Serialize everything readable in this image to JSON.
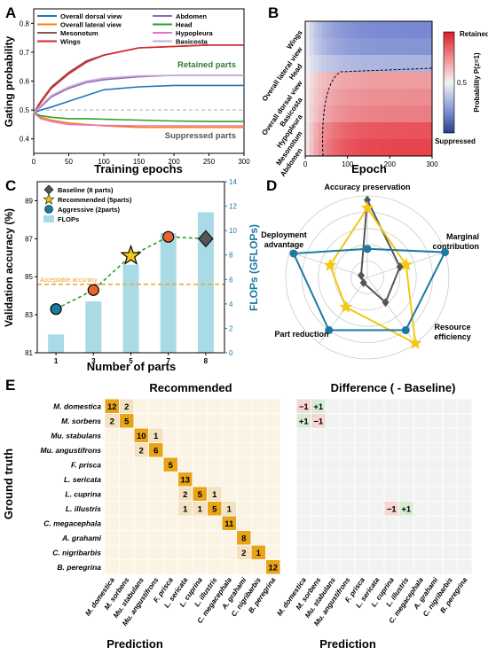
{
  "colors": {
    "overall_dorsal": "#1f77b4",
    "overall_lateral": "#ff7f0e",
    "mesonotum": "#8c564b",
    "wings": "#d62728",
    "abdomen": "#9467bd",
    "head": "#2ca02c",
    "hypopleura": "#e377c2",
    "basicosta": "#c5b0d5",
    "retained_text": "#2e7d32",
    "suppressed_text": "#555555",
    "baseline": "#555555",
    "recommended": "#f2c811",
    "aggressive": "#1a7aa0",
    "flops": "#a8dbe6",
    "trend": "#2ca02c",
    "threshold": "#f0a030",
    "flops_axis": "#1a7aa0",
    "cm_fill": "#fbf3e4",
    "cm_diag": "#e8a317",
    "cm_pos": "#d8ecd4",
    "cm_neg": "#f6d5d5",
    "diff_fill": "#f2f2f2"
  },
  "panel_labels": {
    "a": "A",
    "b": "B",
    "c": "C",
    "d": "D",
    "e": "E"
  },
  "chart_data": [
    {
      "panel": "A",
      "type": "line",
      "xlabel": "Training epochs",
      "ylabel": "Gating probability",
      "xlim": [
        0,
        300
      ],
      "ylim": [
        0.35,
        0.85
      ],
      "xticks": [
        0,
        50,
        100,
        150,
        200,
        250,
        300
      ],
      "yticks": [
        0.4,
        0.5,
        0.6,
        0.7,
        0.8
      ],
      "reference_line": 0.5,
      "annotations": {
        "retained": "Retained parts",
        "suppressed": "Suppressed parts"
      },
      "legend_position": "top",
      "series": [
        {
          "name": "Overall dorsal view",
          "color_key": "overall_dorsal",
          "x": [
            0,
            10,
            25,
            50,
            75,
            100,
            150,
            200,
            250,
            300
          ],
          "values": [
            0.49,
            0.5,
            0.51,
            0.53,
            0.55,
            0.57,
            0.58,
            0.585,
            0.585,
            0.585
          ]
        },
        {
          "name": "Overall lateral view",
          "color_key": "overall_lateral",
          "x": [
            0,
            10,
            25,
            50,
            75,
            100,
            150,
            200,
            250,
            300
          ],
          "values": [
            0.49,
            0.475,
            0.465,
            0.455,
            0.45,
            0.445,
            0.44,
            0.44,
            0.44,
            0.44
          ]
        },
        {
          "name": "Mesonotum",
          "color_key": "mesonotum",
          "x": [
            0,
            10,
            25,
            50,
            75,
            100,
            150,
            200,
            250,
            300
          ],
          "values": [
            0.49,
            0.53,
            0.58,
            0.63,
            0.67,
            0.69,
            0.715,
            0.72,
            0.725,
            0.725
          ]
        },
        {
          "name": "Wings",
          "color_key": "wings",
          "x": [
            0,
            10,
            25,
            50,
            75,
            100,
            150,
            200,
            250,
            300
          ],
          "values": [
            0.49,
            0.525,
            0.575,
            0.625,
            0.665,
            0.69,
            0.715,
            0.72,
            0.725,
            0.725
          ]
        },
        {
          "name": "Abdomen",
          "color_key": "abdomen",
          "x": [
            0,
            10,
            25,
            50,
            75,
            100,
            150,
            200,
            250,
            300
          ],
          "values": [
            0.49,
            0.51,
            0.545,
            0.575,
            0.595,
            0.605,
            0.615,
            0.62,
            0.62,
            0.62
          ]
        },
        {
          "name": "Head",
          "color_key": "head",
          "x": [
            0,
            10,
            25,
            50,
            75,
            100,
            150,
            200,
            250,
            300
          ],
          "values": [
            0.49,
            0.48,
            0.475,
            0.47,
            0.47,
            0.468,
            0.465,
            0.462,
            0.46,
            0.46
          ]
        },
        {
          "name": "Hypopleura",
          "color_key": "hypopleura",
          "x": [
            0,
            10,
            25,
            50,
            75,
            100,
            150,
            200,
            250,
            300
          ],
          "values": [
            0.49,
            0.47,
            0.46,
            0.45,
            0.448,
            0.447,
            0.445,
            0.445,
            0.445,
            0.445
          ]
        },
        {
          "name": "Basicosta",
          "color_key": "basicosta",
          "x": [
            0,
            10,
            25,
            50,
            75,
            100,
            150,
            200,
            250,
            300
          ],
          "values": [
            0.49,
            0.515,
            0.55,
            0.58,
            0.6,
            0.61,
            0.618,
            0.62,
            0.62,
            0.62
          ]
        }
      ]
    },
    {
      "panel": "B",
      "type": "heatmap",
      "xlabel": "Epoch",
      "xlim": [
        0,
        300
      ],
      "xticks": [
        0,
        100,
        200,
        300
      ],
      "rows": [
        "Wings",
        "Overall lateral view",
        "Head",
        "Overall dorsal view",
        "Basicosta",
        "Hypopleura",
        "Mesonotum",
        "Abdomen"
      ],
      "row_final_values": [
        0.3,
        0.32,
        0.38,
        0.62,
        0.64,
        0.66,
        0.72,
        0.74
      ],
      "colorbar": {
        "label": "Probability P(z=1)",
        "top": "Retained",
        "bottom": "Suppressed",
        "tick": "0.5"
      }
    },
    {
      "panel": "C",
      "type": "bar",
      "xlabel": "Number of parts",
      "ylabel": "Validation accuracy (%)",
      "y2label": "FLOPs (GFLOPs)",
      "categories": [
        "1",
        "3",
        "5",
        "7",
        "8"
      ],
      "accuracy": [
        83.3,
        84.3,
        86.1,
        87.1,
        87.0
      ],
      "flops": [
        1.5,
        4.2,
        7.2,
        9.8,
        11.5
      ],
      "ylim": [
        81,
        90
      ],
      "yticks": [
        81,
        83,
        85,
        87,
        89
      ],
      "y2lim": [
        0,
        14
      ],
      "y2ticks": [
        0,
        2,
        4,
        6,
        8,
        10,
        12,
        14
      ],
      "threshold": 84.6,
      "threshold_label": "Acceptable accuracy",
      "legend": [
        "Baseline (8 parts)",
        "Recommended (5parts)",
        "Aggressive (2parts)",
        "FLOPs"
      ]
    },
    {
      "panel": "D",
      "type": "radar",
      "axes": [
        "Accuracy preservation",
        "Marginal contribution",
        "Resource efficiency",
        "Part reduction",
        "Deployment advantage"
      ],
      "rmax": 1.0,
      "series": [
        {
          "name": "Baseline (8 parts)",
          "color_key": "baseline",
          "values": [
            0.95,
            0.42,
            0.38,
            0.05,
            0.0
          ]
        },
        {
          "name": "Recommended (5parts)",
          "color_key": "recommended",
          "values": [
            0.85,
            0.5,
            1.0,
            0.45,
            0.48
          ]
        },
        {
          "name": "Aggressive (2parts)",
          "color_key": "aggressive",
          "values": [
            0.35,
            1.0,
            0.8,
            0.8,
            0.95
          ]
        }
      ]
    },
    {
      "panel": "E",
      "type": "heatmap",
      "title_left": "Recommended",
      "title_right": "Difference ( - Baseline)",
      "xlabel": "Prediction",
      "ylabel": "Ground truth",
      "classes": [
        "M. domestica",
        "M. sorbens",
        "Mu. stabulans",
        "Mu. angustifrons",
        "F. prisca",
        "L. sericata",
        "L. cuprina",
        "L. illustris",
        "C. megacephala",
        "A. grahami",
        "C. nigribarbis",
        "B. peregrina"
      ],
      "recommended_cells": [
        {
          "r": 0,
          "c": 0,
          "v": "12"
        },
        {
          "r": 0,
          "c": 1,
          "v": "2"
        },
        {
          "r": 1,
          "c": 0,
          "v": "2"
        },
        {
          "r": 1,
          "c": 1,
          "v": "5"
        },
        {
          "r": 2,
          "c": 2,
          "v": "10"
        },
        {
          "r": 2,
          "c": 3,
          "v": "1"
        },
        {
          "r": 3,
          "c": 2,
          "v": "2"
        },
        {
          "r": 3,
          "c": 3,
          "v": "6"
        },
        {
          "r": 4,
          "c": 4,
          "v": "5"
        },
        {
          "r": 5,
          "c": 5,
          "v": "13"
        },
        {
          "r": 6,
          "c": 5,
          "v": "2"
        },
        {
          "r": 6,
          "c": 6,
          "v": "5"
        },
        {
          "r": 6,
          "c": 7,
          "v": "1"
        },
        {
          "r": 7,
          "c": 5,
          "v": "1"
        },
        {
          "r": 7,
          "c": 6,
          "v": "1"
        },
        {
          "r": 7,
          "c": 7,
          "v": "5"
        },
        {
          "r": 7,
          "c": 8,
          "v": "1"
        },
        {
          "r": 8,
          "c": 8,
          "v": "11"
        },
        {
          "r": 9,
          "c": 9,
          "v": "8"
        },
        {
          "r": 10,
          "c": 9,
          "v": "2"
        },
        {
          "r": 10,
          "c": 10,
          "v": "1"
        },
        {
          "r": 11,
          "c": 11,
          "v": "12"
        }
      ],
      "difference_cells": [
        {
          "r": 0,
          "c": 0,
          "v": "−1"
        },
        {
          "r": 0,
          "c": 1,
          "v": "+1"
        },
        {
          "r": 1,
          "c": 0,
          "v": "+1"
        },
        {
          "r": 1,
          "c": 1,
          "v": "−1"
        },
        {
          "r": 7,
          "c": 6,
          "v": "−1"
        },
        {
          "r": 7,
          "c": 7,
          "v": "+1"
        }
      ]
    }
  ]
}
